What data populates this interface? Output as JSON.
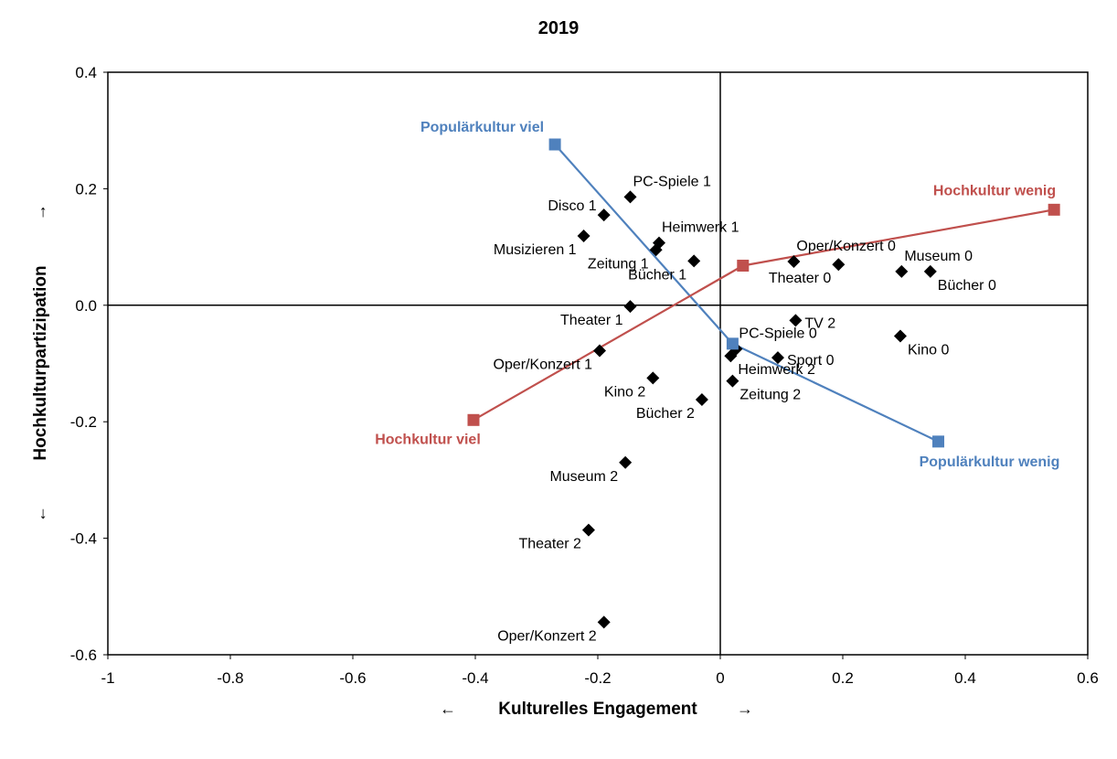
{
  "chart_data": {
    "type": "scatter",
    "title": "2019",
    "xlabel": "Kulturelles Engagement",
    "ylabel": "Hochkulturpartizipation",
    "xlabel_arrows": [
      "←",
      "→"
    ],
    "ylabel_arrows": [
      "←",
      "→"
    ],
    "xlim": [
      -1,
      0.6
    ],
    "ylim": [
      -0.6,
      0.4
    ],
    "x_ticks": [
      -1,
      -0.8,
      -0.6,
      -0.4,
      -0.2,
      0,
      0.2,
      0.4,
      0.6
    ],
    "x_tick_labels": [
      "-1",
      "-0.8",
      "-0.6",
      "-0.4",
      "-0.2",
      "0",
      "0.2",
      "0.4",
      "0.6"
    ],
    "y_ticks": [
      0.4,
      0.2,
      0.0,
      -0.2,
      -0.4,
      -0.6
    ],
    "y_tick_labels": [
      "0.4",
      "0.2",
      "0.0",
      "-0.2",
      "-0.4",
      "-0.6"
    ],
    "grid": false,
    "zero_lines": true,
    "points": [
      {
        "label": "PC-Spiele 1",
        "x": -0.147,
        "y": 0.186,
        "pos": "tr"
      },
      {
        "label": "Disco 1",
        "x": -0.19,
        "y": 0.155,
        "pos": "tl"
      },
      {
        "label": "Musizieren 1",
        "x": -0.223,
        "y": 0.119,
        "pos": "bl"
      },
      {
        "label": "Heimwerk 1",
        "x": -0.1,
        "y": 0.107,
        "pos": "tr"
      },
      {
        "label": "Zeitung 1",
        "x": -0.105,
        "y": 0.095,
        "pos": "bl"
      },
      {
        "label": "Bücher 1",
        "x": -0.043,
        "y": 0.076,
        "pos": "bl"
      },
      {
        "label": "Theater 1",
        "x": -0.147,
        "y": -0.002,
        "pos": "bl"
      },
      {
        "label": "Oper/Konzert 1",
        "x": -0.197,
        "y": -0.078,
        "pos": "bl"
      },
      {
        "label": "Kino 2",
        "x": -0.11,
        "y": -0.125,
        "pos": "bl"
      },
      {
        "label": "Bücher 2",
        "x": -0.03,
        "y": -0.162,
        "pos": "bl"
      },
      {
        "label": "Museum 2",
        "x": -0.155,
        "y": -0.27,
        "pos": "bl"
      },
      {
        "label": "Theater 2",
        "x": -0.215,
        "y": -0.386,
        "pos": "bl"
      },
      {
        "label": "Oper/Konzert 2",
        "x": -0.19,
        "y": -0.544,
        "pos": "bl"
      },
      {
        "label": "Oper/Konzert 0",
        "x": 0.12,
        "y": 0.075,
        "pos": "tr"
      },
      {
        "label": "Theater 0",
        "x": 0.193,
        "y": 0.07,
        "pos": "bl"
      },
      {
        "label": "Museum 0",
        "x": 0.296,
        "y": 0.058,
        "pos": "tr"
      },
      {
        "label": "Bücher 0",
        "x": 0.343,
        "y": 0.058,
        "pos": "br"
      },
      {
        "label": "TV 2",
        "x": 0.123,
        "y": -0.026,
        "pos": "r"
      },
      {
        "label": "Kino 0",
        "x": 0.294,
        "y": -0.053,
        "pos": "br"
      },
      {
        "label": "PC-Spiele 0",
        "x": 0.026,
        "y": -0.075,
        "pos": "tr"
      },
      {
        "label": "Sport 0",
        "x": 0.094,
        "y": -0.09,
        "pos": "r"
      },
      {
        "label": "Heimwerk 2",
        "x": 0.017,
        "y": -0.087,
        "pos": "br"
      },
      {
        "label": "Zeitung 2",
        "x": 0.02,
        "y": -0.13,
        "pos": "br"
      }
    ],
    "series": [
      {
        "name": "Populärkultur",
        "color": "#4f81bd",
        "points": [
          {
            "label": "Populärkultur viel",
            "x": -0.27,
            "y": 0.276
          },
          {
            "label": "",
            "x": 0.02,
            "y": -0.066
          },
          {
            "label": "Populärkultur wenig",
            "x": 0.356,
            "y": -0.234
          }
        ]
      },
      {
        "name": "Hochkultur",
        "color": "#c0504d",
        "points": [
          {
            "label": "Hochkultur viel",
            "x": -0.403,
            "y": -0.197
          },
          {
            "label": "",
            "x": 0.037,
            "y": 0.068
          },
          {
            "label": "Hochkultur wenig",
            "x": 0.545,
            "y": 0.164
          }
        ]
      }
    ],
    "series_labels": [
      {
        "text": "Populärkultur viel",
        "series": 0
      },
      {
        "text": "Populärkultur wenig",
        "series": 0
      },
      {
        "text": "Hochkultur viel",
        "series": 1
      },
      {
        "text": "Hochkultur wenig",
        "series": 1
      }
    ]
  }
}
